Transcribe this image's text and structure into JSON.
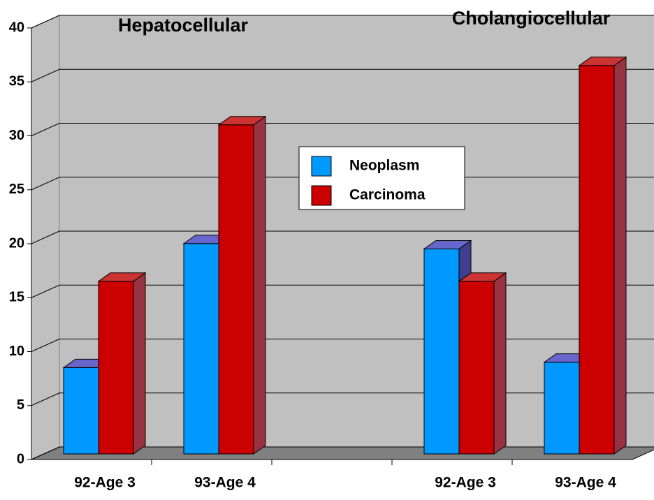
{
  "chart_data": {
    "type": "bar3d",
    "categories": [
      "92-Age 3",
      "93-Age 4",
      null,
      "92-Age 3",
      "93-Age 4"
    ],
    "series": [
      {
        "name": "Neoplasm",
        "color": "#0099ff",
        "side": "#3f3f8f",
        "top": "#6666cc",
        "values": [
          8,
          19.5,
          null,
          19,
          8.5
        ]
      },
      {
        "name": "Carcinoma",
        "color": "#cc0000",
        "side": "#993344",
        "top": "#cc3333",
        "values": [
          16,
          30.5,
          null,
          16,
          36
        ]
      }
    ],
    "annotations": [
      "Hepatocellular",
      "Cholangiocellular"
    ],
    "ylim": [
      0,
      40
    ],
    "yticks": [
      0,
      5,
      10,
      15,
      20,
      25,
      30,
      35,
      40
    ],
    "grid": true
  }
}
